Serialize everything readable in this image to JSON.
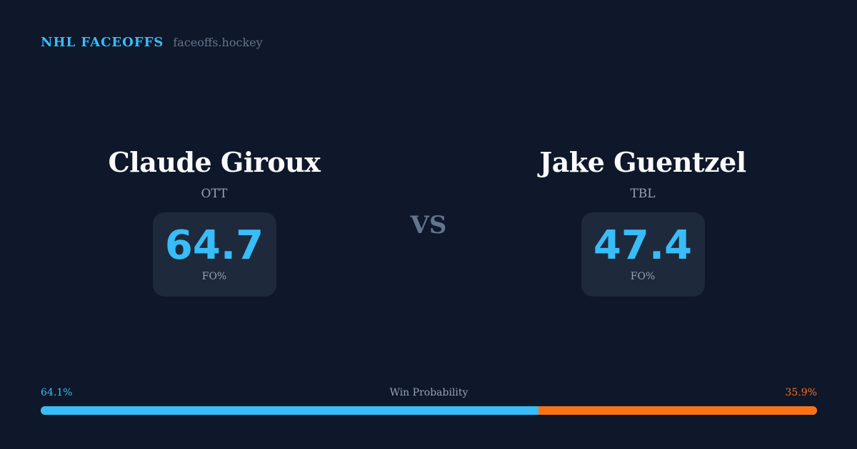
{
  "brand": {
    "name": "NHL FACEOFFS",
    "domain": "faceoffs.hockey"
  },
  "players": [
    {
      "name": "Claude Giroux",
      "team": "OTT",
      "fo_pct": "64.7",
      "fo_label": "FO%"
    },
    {
      "name": "Jake Guentzel",
      "team": "TBL",
      "fo_pct": "47.4",
      "fo_label": "FO%"
    }
  ],
  "vs": "VS",
  "win_probability": {
    "label": "Win Probability",
    "left": "64.1%",
    "right": "35.9%",
    "left_value": 64.1,
    "colors": {
      "left": "#38bdf8",
      "right": "#f97316"
    }
  }
}
